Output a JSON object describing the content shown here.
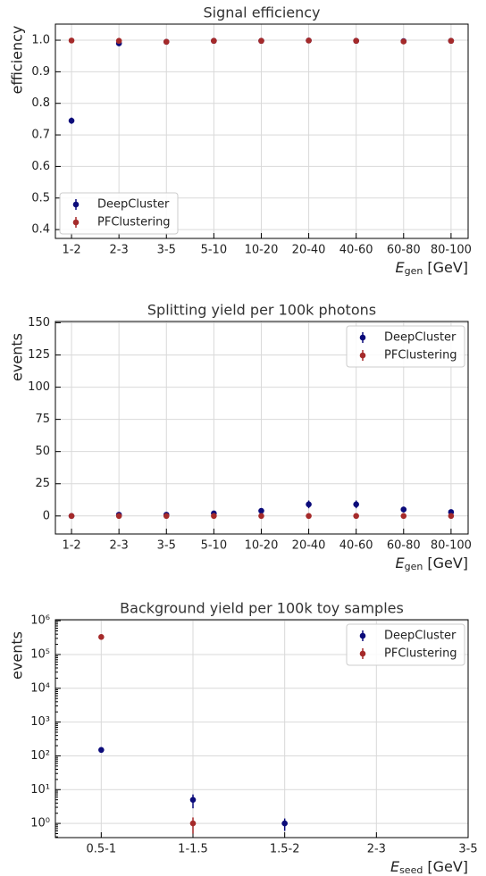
{
  "chart_data": [
    {
      "type": "errorbar",
      "title": "Signal efficiency",
      "ylabel": "efficiency",
      "xlabel": {
        "symbol": "E",
        "subscript": "gen",
        "unit": "[GeV]"
      },
      "categories": [
        "1-2",
        "2-3",
        "3-5",
        "5-10",
        "10-20",
        "20-40",
        "40-60",
        "60-80",
        "80-100"
      ],
      "series": [
        {
          "name": "DeepCluster",
          "color": "#0b0b7a",
          "values": [
            0.745,
            0.99,
            0.995,
            0.998,
            0.998,
            0.999,
            0.998,
            0.997,
            0.998
          ],
          "errors": [
            0.01,
            0.004,
            0.002,
            0.001,
            0.001,
            0.001,
            0.001,
            0.001,
            0.001
          ]
        },
        {
          "name": "PFClustering",
          "color": "#a52a2a",
          "values": [
            0.999,
            0.998,
            0.995,
            0.998,
            0.998,
            0.999,
            0.998,
            0.996,
            0.998
          ],
          "errors": [
            0.001,
            0.001,
            0.002,
            0.001,
            0.001,
            0.001,
            0.001,
            0.001,
            0.001
          ]
        }
      ],
      "ylim": [
        0.372,
        1.051
      ],
      "yticks": [
        0.4,
        0.5,
        0.6,
        0.7,
        0.8,
        0.9,
        {
          "value": 1.0,
          "label": "1.0"
        }
      ],
      "log_y": false,
      "grid": true,
      "legend": "lower left"
    },
    {
      "type": "errorbar",
      "title": "Splitting yield per 100k photons",
      "ylabel": "events",
      "xlabel": {
        "symbol": "E",
        "subscript": "gen",
        "unit": "[GeV]"
      },
      "categories": [
        "1-2",
        "2-3",
        "3-5",
        "5-10",
        "10-20",
        "20-40",
        "40-60",
        "60-80",
        "80-100"
      ],
      "series": [
        {
          "name": "DeepCluster",
          "color": "#0b0b7a",
          "values": [
            0,
            1,
            1,
            2,
            4,
            9,
            9,
            5,
            3
          ],
          "errors": [
            0,
            1,
            1,
            1.4,
            2,
            3,
            3,
            2.2,
            1.7
          ]
        },
        {
          "name": "PFClustering",
          "color": "#a52a2a",
          "values": [
            0,
            0,
            0,
            0,
            0,
            0,
            0,
            0,
            0
          ],
          "errors": [
            0,
            0,
            0,
            0,
            0,
            0,
            0,
            0,
            0
          ]
        }
      ],
      "ylim": [
        -14,
        151
      ],
      "yticks": [
        0,
        25,
        50,
        75,
        100,
        125,
        150
      ],
      "log_y": false,
      "grid": true,
      "legend": "upper right"
    },
    {
      "type": "errorbar",
      "title": "Background yield per 100k toy samples",
      "ylabel": "events",
      "xlabel": {
        "symbol": "E",
        "subscript": "seed",
        "unit": "[GeV]"
      },
      "categories": [
        "0.5-1",
        "1-1.5",
        "1.5-2",
        "2-3",
        "3-5"
      ],
      "series": [
        {
          "name": "DeepCluster",
          "color": "#0b0b7a",
          "values": [
            150,
            5,
            1,
            null,
            null
          ],
          "errors": [
            12,
            2.2,
            0.4,
            null,
            null
          ]
        },
        {
          "name": "PFClustering",
          "color": "#a52a2a",
          "values": [
            330000,
            1,
            null,
            null,
            null
          ],
          "errors": [
            570,
            0.5,
            null,
            null,
            null
          ]
        }
      ],
      "ylim": [
        0.38,
        1070000
      ],
      "yticks": [
        {
          "value": 1,
          "label": "10⁰"
        },
        {
          "value": 10,
          "label": "10¹"
        },
        {
          "value": 100,
          "label": "10²"
        },
        {
          "value": 1000,
          "label": "10³"
        },
        {
          "value": 10000,
          "label": "10⁴"
        },
        {
          "value": 100000,
          "label": "10⁵"
        },
        {
          "value": 1000000,
          "label": "10⁶"
        }
      ],
      "log_y": true,
      "grid": true,
      "legend": "upper right"
    }
  ]
}
